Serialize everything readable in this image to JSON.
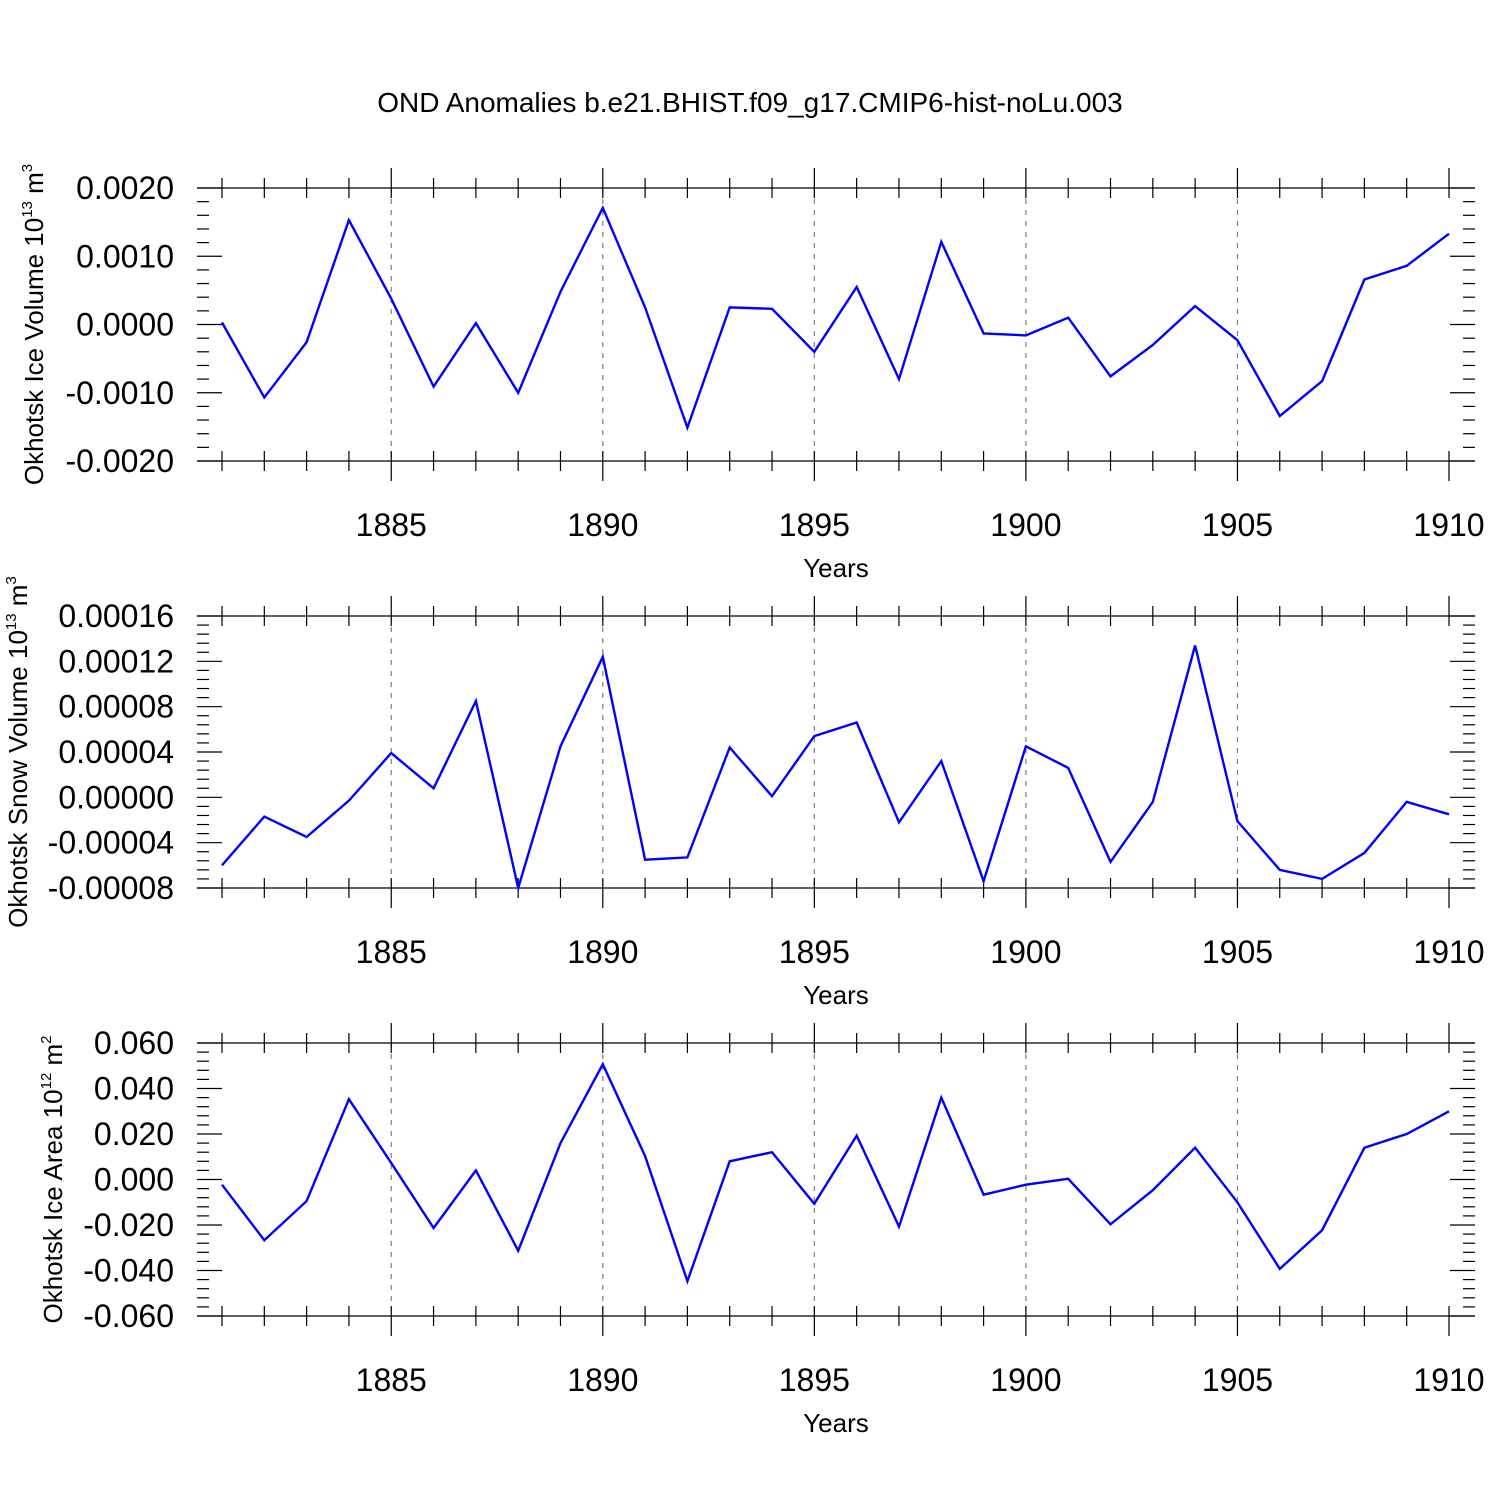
{
  "title": "OND Anomalies b.e21.BHIST.f09_g17.CMIP6-hist-noLu.003",
  "colors": {
    "line": "#0000ff",
    "axis": "#000000",
    "grid": "#7f7f7f"
  },
  "chart_data": [
    {
      "type": "line",
      "ylabel": {
        "text": "Okhotsk Ice Volume 10",
        "sup": "13",
        "unit": " m",
        "unit_sup": "3"
      },
      "xlabel": "Years",
      "xlim": [
        1881,
        1910
      ],
      "ylim": [
        -0.002,
        0.002
      ],
      "x_major_ticks": [
        1885,
        1890,
        1895,
        1900,
        1905,
        1910
      ],
      "x_tick_labels": [
        "1885",
        "1890",
        "1895",
        "1900",
        "1905",
        "1910"
      ],
      "y_major_ticks": [
        -0.002,
        -0.001,
        0.0,
        0.001,
        0.002
      ],
      "y_tick_labels": [
        "-0.0020",
        "-0.0010",
        "0.0000",
        "0.0010",
        "0.0020"
      ],
      "x_grid": true,
      "series": [
        {
          "name": "Okhotsk Ice Volume",
          "x": [
            1881,
            1882,
            1883,
            1884,
            1885,
            1886,
            1887,
            1888,
            1889,
            1890,
            1891,
            1892,
            1893,
            1894,
            1895,
            1896,
            1897,
            1898,
            1899,
            1900,
            1901,
            1902,
            1903,
            1904,
            1905,
            1906,
            1907,
            1908,
            1909,
            1910
          ],
          "values": [
            3e-05,
            -0.00107,
            -0.00026,
            0.00153,
            0.00038,
            -0.00091,
            2e-05,
            -0.001,
            0.00048,
            0.00171,
            0.00025,
            -0.00151,
            0.00025,
            0.00023,
            -0.0004,
            0.00055,
            -0.0008,
            0.00121,
            -0.00013,
            -0.00016,
            0.0001,
            -0.00076,
            -0.0003,
            0.00027,
            -0.00023,
            -0.00134,
            -0.00083,
            0.00066,
            0.00086,
            0.00133
          ]
        }
      ]
    },
    {
      "type": "line",
      "ylabel": {
        "text": "Okhotsk Snow Volume 10",
        "sup": "13",
        "unit": " m",
        "unit_sup": "3"
      },
      "xlabel": "Years",
      "xlim": [
        1881,
        1910
      ],
      "ylim": [
        -8e-05,
        0.00016
      ],
      "x_major_ticks": [
        1885,
        1890,
        1895,
        1900,
        1905,
        1910
      ],
      "x_tick_labels": [
        "1885",
        "1890",
        "1895",
        "1900",
        "1905",
        "1910"
      ],
      "y_major_ticks": [
        -8e-05,
        -4e-05,
        0.0,
        4e-05,
        8e-05,
        0.00012,
        0.00016
      ],
      "y_tick_labels": [
        "-0.00008",
        "-0.00004",
        "0.00000",
        "0.00004",
        "0.00008",
        "0.00012",
        "0.00016"
      ],
      "x_grid": true,
      "series": [
        {
          "name": "Okhotsk Snow Volume",
          "x": [
            1881,
            1882,
            1883,
            1884,
            1885,
            1886,
            1887,
            1888,
            1889,
            1890,
            1891,
            1892,
            1893,
            1894,
            1895,
            1896,
            1897,
            1898,
            1899,
            1900,
            1901,
            1902,
            1903,
            1904,
            1905,
            1906,
            1907,
            1908,
            1909,
            1910
          ],
          "values": [
            -6e-05,
            -1.7e-05,
            -3.5e-05,
            -3e-06,
            3.9e-05,
            8e-06,
            8.5e-05,
            -8e-05,
            4.5e-05,
            0.000124,
            -5.5e-05,
            -5.3e-05,
            4.4e-05,
            1e-06,
            5.4e-05,
            6.6e-05,
            -2.2e-05,
            3.2e-05,
            -7.4e-05,
            4.5e-05,
            2.6e-05,
            -5.7e-05,
            -4e-06,
            0.000134,
            -2.1e-05,
            -6.4e-05,
            -7.2e-05,
            -4.9e-05,
            -4e-06,
            -1.5e-05
          ]
        }
      ]
    },
    {
      "type": "line",
      "ylabel": {
        "text": "Okhotsk Ice Area 10",
        "sup": "12",
        "unit": " m",
        "unit_sup": "2"
      },
      "xlabel": "Years",
      "xlim": [
        1881,
        1910
      ],
      "ylim": [
        -0.06,
        0.06
      ],
      "x_major_ticks": [
        1885,
        1890,
        1895,
        1900,
        1905,
        1910
      ],
      "x_tick_labels": [
        "1885",
        "1890",
        "1895",
        "1900",
        "1905",
        "1910"
      ],
      "y_major_ticks": [
        -0.06,
        -0.04,
        -0.02,
        0.0,
        0.02,
        0.04,
        0.06
      ],
      "y_tick_labels": [
        "-0.060",
        "-0.040",
        "-0.020",
        "0.000",
        "0.020",
        "0.040",
        "0.060"
      ],
      "x_grid": true,
      "series": [
        {
          "name": "Okhotsk Ice Area",
          "x": [
            1881,
            1882,
            1883,
            1884,
            1885,
            1886,
            1887,
            1888,
            1889,
            1890,
            1891,
            1892,
            1893,
            1894,
            1895,
            1896,
            1897,
            1898,
            1899,
            1900,
            1901,
            1902,
            1903,
            1904,
            1905,
            1906,
            1907,
            1908,
            1909,
            1910
          ],
          "values": [
            -0.0023,
            -0.0267,
            -0.0095,
            0.0353,
            0.0073,
            -0.0213,
            0.004,
            -0.0313,
            0.016,
            0.0507,
            0.0103,
            -0.0447,
            0.008,
            0.012,
            -0.0107,
            0.0193,
            -0.0207,
            0.036,
            -0.0067,
            -0.0023,
            0.0003,
            -0.0197,
            -0.0047,
            0.014,
            -0.01,
            -0.0393,
            -0.0223,
            0.014,
            0.02,
            0.03
          ]
        }
      ]
    }
  ]
}
